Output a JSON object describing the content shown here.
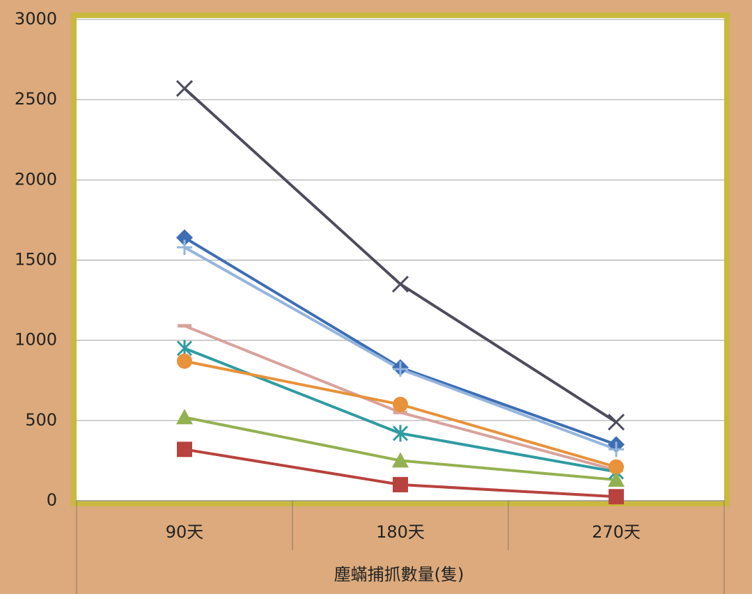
{
  "chart_data": {
    "type": "line",
    "categories": [
      "90天",
      "180天",
      "270天"
    ],
    "x_label": "塵蟎捕抓數量(隻)",
    "ylim": [
      0,
      3000
    ],
    "yticks": [
      0,
      500,
      1000,
      1500,
      2000,
      2500,
      3000
    ],
    "grid": true,
    "series": [
      {
        "color": "#4c4c5c",
        "marker": "x",
        "values": [
          2570,
          1350,
          490
        ]
      },
      {
        "color": "#3d6eb4",
        "marker": "diamond",
        "values": [
          1640,
          830,
          350
        ]
      },
      {
        "color": "#95b5de",
        "marker": "plus",
        "values": [
          1580,
          820,
          320
        ]
      },
      {
        "color": "#d9a29b",
        "marker": "dash",
        "values": [
          1090,
          550,
          190
        ]
      },
      {
        "color": "#2f9ba2",
        "marker": "asterisk",
        "values": [
          950,
          420,
          180
        ]
      },
      {
        "color": "#e8923a",
        "marker": "circle",
        "values": [
          870,
          600,
          210
        ]
      },
      {
        "color": "#93b150",
        "marker": "triangle",
        "values": [
          520,
          250,
          130
        ]
      },
      {
        "color": "#b8423d",
        "marker": "square",
        "values": [
          320,
          100,
          25
        ]
      }
    ]
  }
}
